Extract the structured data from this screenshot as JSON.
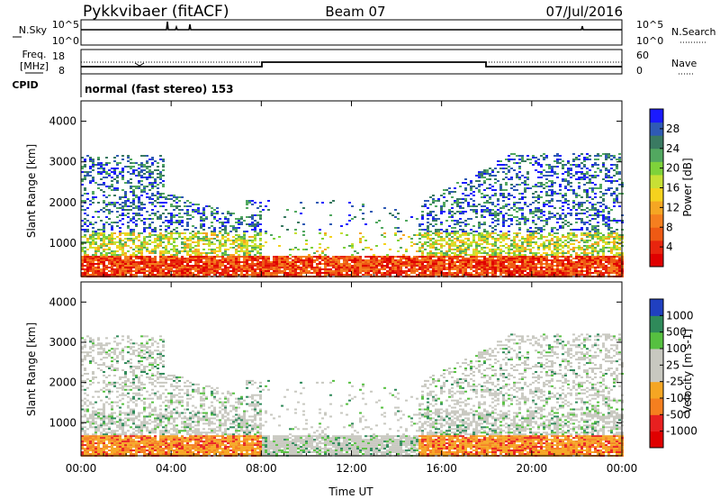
{
  "header": {
    "station": "Pykkvibaer (fitACF)",
    "beam": "Beam 07",
    "date": "07/Jul/2016"
  },
  "noise_panel": {
    "left_label": "N.Sky",
    "right_label": "N.Search",
    "y_ticks": [
      "10^5",
      "10^0"
    ]
  },
  "freq_panel": {
    "left_label_top": "Freq.",
    "left_label_bottom": "[MHz]",
    "right_label": "Nave",
    "left_ticks": [
      "18",
      "8"
    ],
    "right_ticks": [
      "60",
      "0"
    ]
  },
  "cpid": {
    "label": "CPID",
    "text": "normal (fast stereo) 153"
  },
  "chart_data": [
    {
      "type": "heatmap",
      "title": "",
      "ylabel": "Slant Range [km]",
      "xlabel": "",
      "ylim": [
        180,
        4500
      ],
      "y_ticks": [
        "4000",
        "3000",
        "2000",
        "1000"
      ],
      "x_ticks": [
        "00:00",
        "04:00",
        "08:00",
        "12:00",
        "16:00",
        "20:00",
        "00:00"
      ],
      "colorbar": {
        "label": "Power [dB]",
        "ticks": [
          "28",
          "24",
          "20",
          "16",
          "12",
          "8",
          "4"
        ],
        "colors": [
          "#1a1aff",
          "#2f5ab4",
          "#3a7a62",
          "#52a860",
          "#7ed23a",
          "#c8e035",
          "#f5d21e",
          "#f5a623",
          "#f57f1f",
          "#ee5a14",
          "#e8250e",
          "#e00000"
        ]
      }
    },
    {
      "type": "heatmap",
      "title": "",
      "ylabel": "Slant Range [km]",
      "xlabel": "Time UT",
      "ylim": [
        180,
        4500
      ],
      "y_ticks": [
        "4000",
        "3000",
        "2000",
        "1000"
      ],
      "x_ticks": [
        "00:00",
        "04:00",
        "08:00",
        "12:00",
        "16:00",
        "20:00",
        "00:00"
      ],
      "colorbar": {
        "label": "Velocity [m s-1]",
        "ticks": [
          "1000",
          "500",
          "100",
          "25",
          "-25",
          "-100",
          "-500",
          "-1000"
        ],
        "colors": [
          "#2040c0",
          "#2f8a5a",
          "#56c040",
          "#c8c8c0",
          "#c8c8c0",
          "#f5a623",
          "#f57f1f",
          "#e82020",
          "#e00000"
        ]
      }
    }
  ]
}
